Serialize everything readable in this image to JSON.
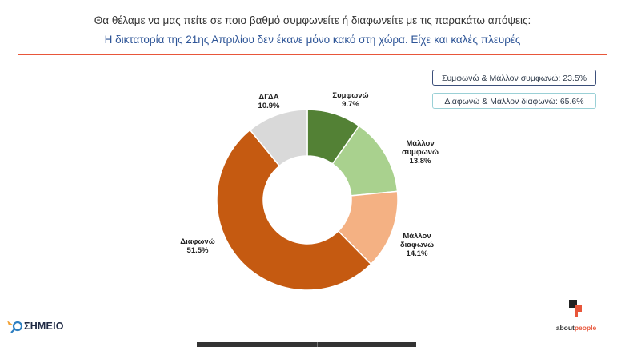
{
  "header": {
    "question": "Θα θέλαμε να μας πείτε σε ποιο βαθμό συμφωνείτε ή διαφωνείτε με τις παρακάτω απόψεις:",
    "statement": "Η δικτατορία της 21ης Απριλίου δεν έκανε μόνο κακό στη χώρα. Είχε και καλές πλευρές",
    "accent_color": "#e8563a",
    "statement_color": "#2e5597"
  },
  "summary": {
    "agree": "Συμφωνώ & Μάλλον συμφωνώ: 23.5%",
    "disagree": "Διαφωνώ & Μάλλον διαφωνώ: 65.6%"
  },
  "chart_data": {
    "type": "pie",
    "donut": true,
    "title": "",
    "unit": "%",
    "slices": [
      {
        "label": "Συμφωνώ",
        "value": 9.7,
        "value_label": "9.7%",
        "color": "#538135"
      },
      {
        "label": "Μάλλον συμφωνώ",
        "value": 13.8,
        "value_label": "13.8%",
        "color": "#a9d18e"
      },
      {
        "label": "Μάλλον διαφωνώ",
        "value": 14.1,
        "value_label": "14.1%",
        "color": "#f4b183"
      },
      {
        "label": "Διαφωνώ",
        "value": 51.5,
        "value_label": "51.5%",
        "color": "#c55a11"
      },
      {
        "label": "ΔΓΔΑ",
        "value": 10.9,
        "value_label": "10.9%",
        "color": "#d9d9d9"
      }
    ],
    "start": "12 o'clock",
    "direction": "clockwise",
    "legend": "none"
  },
  "logos": {
    "left": "ΣΗΜΕΙΟ",
    "right_main": "about",
    "right_accent": "people",
    "left_icon": "magnifier-logo-icon",
    "right_icon": "aboutpeople-mark-icon"
  }
}
